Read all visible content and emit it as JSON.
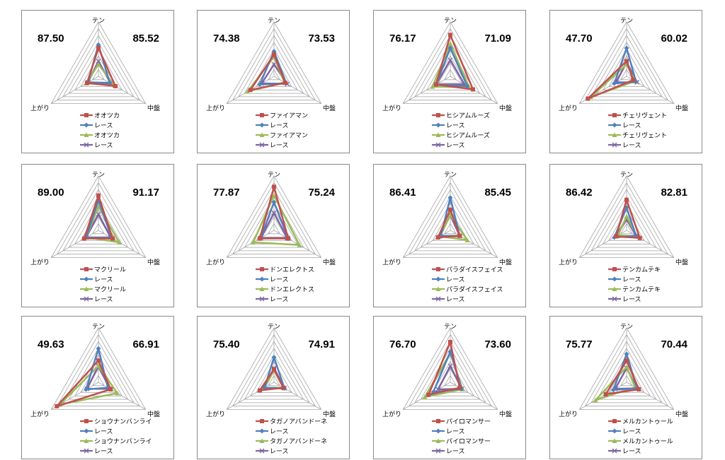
{
  "colors": {
    "s1": "#c0504d",
    "s2": "#4f81bd",
    "s3": "#9bbb59",
    "s4": "#8064a2",
    "grid": "#a6a6a6"
  },
  "axes": [
    "テン",
    "中盤",
    "上がり"
  ],
  "chart_data": [
    {
      "type": "radar",
      "axes": [
        "テン",
        "中盤",
        "上がり"
      ],
      "left_value": "87.50",
      "right_value": "85.52",
      "series": [
        {
          "name": "オオツカ",
          "values": [
            0.52,
            0.36,
            0.24
          ]
        },
        {
          "name": "レース",
          "values": [
            0.58,
            0.24,
            0.22
          ]
        },
        {
          "name": "オオツカ",
          "values": [
            0.22,
            0.34,
            0.26
          ]
        },
        {
          "name": "レース",
          "values": [
            0.28,
            0.26,
            0.22
          ]
        }
      ]
    },
    {
      "type": "radar",
      "axes": [
        "テン",
        "中盤",
        "上がり"
      ],
      "left_value": "74.38",
      "right_value": "73.53",
      "series": [
        {
          "name": "ファイアマン",
          "values": [
            0.4,
            0.24,
            0.5
          ]
        },
        {
          "name": "レース",
          "values": [
            0.46,
            0.26,
            0.3
          ]
        },
        {
          "name": "ファイアマン",
          "values": [
            0.36,
            0.22,
            0.56
          ]
        },
        {
          "name": "レース",
          "values": [
            0.22,
            0.28,
            0.26
          ]
        }
      ]
    },
    {
      "type": "radar",
      "axes": [
        "テン",
        "中盤",
        "上がり"
      ],
      "left_value": "76.17",
      "right_value": "71.09",
      "series": [
        {
          "name": "ヒシアムルーズ",
          "values": [
            0.76,
            0.48,
            0.3
          ]
        },
        {
          "name": "レース",
          "values": [
            0.52,
            0.36,
            0.3
          ]
        },
        {
          "name": "ヒシアムルーズ",
          "values": [
            0.6,
            0.4,
            0.38
          ]
        },
        {
          "name": "レース",
          "values": [
            0.3,
            0.3,
            0.3
          ]
        }
      ]
    },
    {
      "type": "radar",
      "axes": [
        "テン",
        "中盤",
        "上がり"
      ],
      "left_value": "47.70",
      "right_value": "60.02",
      "series": [
        {
          "name": "チェリヴェント",
          "values": [
            0.28,
            0.14,
            0.82
          ]
        },
        {
          "name": "レース",
          "values": [
            0.52,
            0.2,
            0.26
          ]
        },
        {
          "name": "チェリヴェント",
          "values": [
            0.22,
            0.18,
            0.76
          ]
        },
        {
          "name": "レース",
          "values": [
            0.26,
            0.22,
            0.22
          ]
        }
      ]
    },
    {
      "type": "radar",
      "axes": [
        "テン",
        "中盤",
        "上がり"
      ],
      "left_value": "89.00",
      "right_value": "91.17",
      "series": [
        {
          "name": "マクリール",
          "values": [
            0.64,
            0.3,
            0.3
          ]
        },
        {
          "name": "レース",
          "values": [
            0.56,
            0.28,
            0.26
          ]
        },
        {
          "name": "マクリール",
          "values": [
            0.44,
            0.44,
            0.26
          ]
        },
        {
          "name": "レース",
          "values": [
            0.3,
            0.26,
            0.26
          ]
        }
      ]
    },
    {
      "type": "radar",
      "axes": [
        "テン",
        "中盤",
        "上がり"
      ],
      "left_value": "77.87",
      "right_value": "75.24",
      "series": [
        {
          "name": "ドンエレクトス",
          "values": [
            0.8,
            0.3,
            0.3
          ]
        },
        {
          "name": "レース",
          "values": [
            0.52,
            0.3,
            0.28
          ]
        },
        {
          "name": "ドンエレクトス",
          "values": [
            0.64,
            0.54,
            0.44
          ]
        },
        {
          "name": "レース",
          "values": [
            0.32,
            0.28,
            0.28
          ]
        }
      ]
    },
    {
      "type": "radar",
      "axes": [
        "テン",
        "中盤",
        "上がり"
      ],
      "left_value": "86.41",
      "right_value": "85.45",
      "series": [
        {
          "name": "パラダイスフェイス",
          "values": [
            0.38,
            0.2,
            0.26
          ]
        },
        {
          "name": "レース",
          "values": [
            0.6,
            0.2,
            0.2
          ]
        },
        {
          "name": "パラダイスフェイス",
          "values": [
            0.28,
            0.36,
            0.22
          ]
        },
        {
          "name": "レース",
          "values": [
            0.28,
            0.2,
            0.22
          ]
        }
      ]
    },
    {
      "type": "radar",
      "axes": [
        "テン",
        "中盤",
        "上がり"
      ],
      "left_value": "86.42",
      "right_value": "82.81",
      "series": [
        {
          "name": "テンカムテキ",
          "values": [
            0.56,
            0.28,
            0.22
          ]
        },
        {
          "name": "レース",
          "values": [
            0.42,
            0.2,
            0.26
          ]
        },
        {
          "name": "テンカムテキ",
          "values": [
            0.26,
            0.22,
            0.18
          ]
        },
        {
          "name": "レース",
          "values": [
            0.2,
            0.2,
            0.22
          ]
        }
      ]
    },
    {
      "type": "radar",
      "axes": [
        "テン",
        "中盤",
        "上がり"
      ],
      "left_value": "49.63",
      "right_value": "66.91",
      "series": [
        {
          "name": "ショウナンバンライ",
          "values": [
            0.4,
            0.26,
            0.88
          ]
        },
        {
          "name": "レース",
          "values": [
            0.62,
            0.2,
            0.26
          ]
        },
        {
          "name": "ショウナンバンライ",
          "values": [
            0.3,
            0.4,
            0.82
          ]
        },
        {
          "name": "レース",
          "values": [
            0.3,
            0.24,
            0.24
          ]
        }
      ]
    },
    {
      "type": "radar",
      "axes": [
        "テン",
        "中盤",
        "上がり"
      ],
      "left_value": "75.40",
      "right_value": "74.91",
      "series": [
        {
          "name": "タガノアバンドーネ",
          "values": [
            0.24,
            0.2,
            0.3
          ]
        },
        {
          "name": "レース",
          "values": [
            0.46,
            0.22,
            0.2
          ]
        },
        {
          "name": "タガノアバンドーネ",
          "values": [
            0.22,
            0.2,
            0.2
          ]
        },
        {
          "name": "レース",
          "values": [
            0.26,
            0.22,
            0.22
          ]
        }
      ]
    },
    {
      "type": "radar",
      "axes": [
        "テン",
        "中盤",
        "上がり"
      ],
      "left_value": "76.70",
      "right_value": "73.60",
      "series": [
        {
          "name": "パイロマンサー",
          "values": [
            0.74,
            0.2,
            0.46
          ]
        },
        {
          "name": "レース",
          "values": [
            0.56,
            0.24,
            0.36
          ]
        },
        {
          "name": "パイロマンサー",
          "values": [
            0.54,
            0.26,
            0.54
          ]
        },
        {
          "name": "レース",
          "values": [
            0.3,
            0.24,
            0.26
          ]
        }
      ]
    },
    {
      "type": "radar",
      "axes": [
        "テン",
        "中盤",
        "上がり"
      ],
      "left_value": "75.77",
      "right_value": "70.44",
      "series": [
        {
          "name": "メルカントゥール",
          "values": [
            0.4,
            0.26,
            0.44
          ]
        },
        {
          "name": "レース",
          "values": [
            0.52,
            0.22,
            0.28
          ]
        },
        {
          "name": "メルカントゥール",
          "values": [
            0.28,
            0.18,
            0.66
          ]
        },
        {
          "name": "レース",
          "values": [
            0.26,
            0.22,
            0.24
          ]
        }
      ]
    }
  ]
}
